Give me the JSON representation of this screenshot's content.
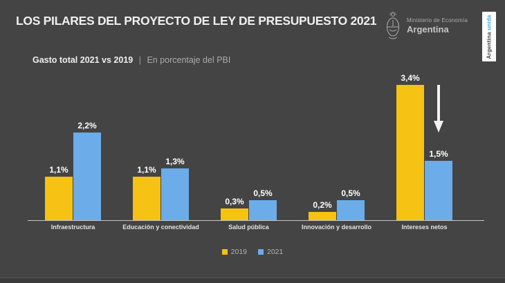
{
  "header": {
    "title": "LOS PILARES DEL PROYECTO DE LEY DE PRESUPUESTO 2021",
    "ministry": {
      "line1": "Ministerio de Economía",
      "line2": "Argentina"
    },
    "badge": {
      "word1": "Argentina",
      "word2": "unida"
    }
  },
  "subtitle": {
    "bold": "Gasto total 2021 vs 2019",
    "separator": "|",
    "regular": "En porcentaje del PBI"
  },
  "colors": {
    "background": "#444444",
    "series_2019": "#F6C213",
    "series_2021": "#6CACE8",
    "badge_unida": "#3FA9E0",
    "axis_line": "#C8C8C8",
    "arrow": "#F2F2F2"
  },
  "chart_data": {
    "type": "bar",
    "title": "Gasto total 2021 vs 2019 | En porcentaje del PBI",
    "categories": [
      "Infraestructura",
      "Educación y conectividad",
      "Salud pública",
      "Innovación y desarrollo",
      "Intereses netos"
    ],
    "series": [
      {
        "name": "2019",
        "color": "series_2019",
        "values": [
          1.1,
          1.1,
          0.3,
          0.2,
          3.4
        ],
        "labels": [
          "1,1%",
          "1,1%",
          "0,3%",
          "0,2%",
          "3,4%"
        ]
      },
      {
        "name": "2021",
        "color": "series_2021",
        "values": [
          2.2,
          1.3,
          0.5,
          0.5,
          1.5
        ],
        "labels": [
          "2,2%",
          "1,3%",
          "0,5%",
          "0,5%",
          "1,5%"
        ]
      }
    ],
    "ylim": [
      0,
      3.6
    ],
    "unit": "% del PBI",
    "legend": [
      "2019",
      "2021"
    ],
    "legend_position": "bottom",
    "grid": false,
    "annotations": [
      {
        "type": "down-arrow",
        "category": "Intereses netos",
        "series": "2021"
      }
    ]
  }
}
